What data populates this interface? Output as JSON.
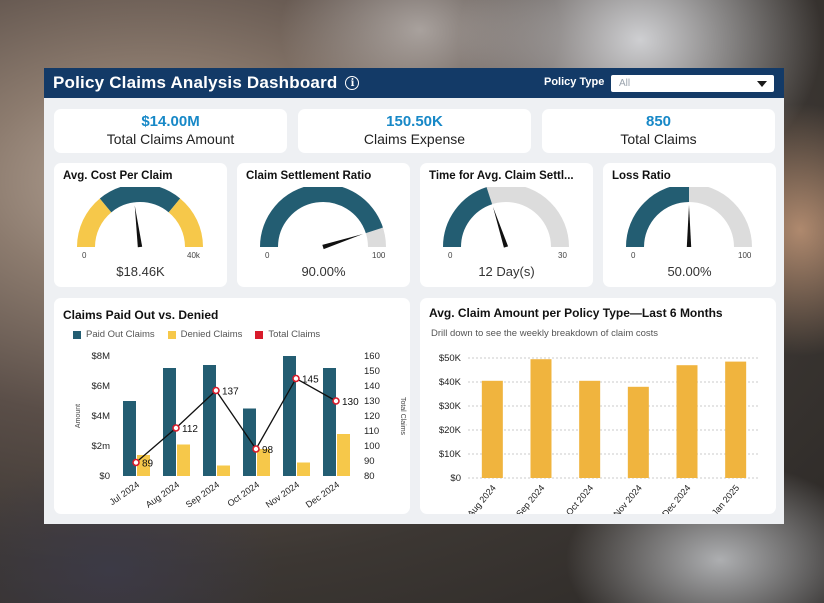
{
  "header": {
    "title": "Policy Claims Analysis Dashboard",
    "info_icon": "info-circle-icon",
    "filter_label": "Policy Type",
    "filter_value": "All"
  },
  "kpis": [
    {
      "value": "$14.00M",
      "label": "Total Claims Amount"
    },
    {
      "value": "150.50K",
      "label": "Claims Expense"
    },
    {
      "value": "850",
      "label": "Total Claims"
    }
  ],
  "gauges": [
    {
      "title": "Avg. Cost Per Claim",
      "min": "0",
      "max": "40k",
      "value_label": "$18.46K",
      "fraction": 0.46,
      "style": "segmented"
    },
    {
      "title": "Claim Settlement Ratio",
      "min": "0",
      "max": "100",
      "value_label": "90.00%",
      "fraction": 0.9,
      "style": "fill"
    },
    {
      "title": "Time for Avg. Claim Settl...",
      "min": "0",
      "max": "30",
      "value_label": "12 Day(s)",
      "fraction": 0.4,
      "style": "fill"
    },
    {
      "title": "Loss Ratio",
      "min": "0",
      "max": "100",
      "value_label": "50.00%",
      "fraction": 0.5,
      "style": "fill"
    }
  ],
  "colors": {
    "navy": "#133a67",
    "teal": "#235d72",
    "gold": "#f0b43e",
    "gauge_yellow": "#f6c84a",
    "gauge_grey": "#dcdcdc",
    "accent": "#1788c7",
    "red": "#d81b2b"
  },
  "chart_data": [
    {
      "type": "bar",
      "title": "Claims Paid Out vs. Denied",
      "categories": [
        "Jul 2024",
        "Aug 2024",
        "Sep 2024",
        "Oct 2024",
        "Nov 2024",
        "Dec 2024"
      ],
      "series": [
        {
          "name": "Paid Out Claims",
          "values": [
            5.0,
            7.2,
            7.4,
            4.5,
            8.0,
            7.2
          ],
          "axis": "left"
        },
        {
          "name": "Denied Claims",
          "values": [
            1.4,
            2.1,
            0.7,
            1.8,
            0.9,
            2.8
          ],
          "axis": "left"
        },
        {
          "name": "Total Claims",
          "type": "line",
          "values": [
            89,
            112,
            137,
            98,
            145,
            130
          ],
          "axis": "right"
        }
      ],
      "ylabel": "Amount",
      "y2label": "Total Claims",
      "ylim": [
        0,
        8
      ],
      "y2lim": [
        80,
        160
      ],
      "yticks": [
        "$0",
        "$2m",
        "$4M",
        "$6M",
        "$8M"
      ],
      "y2ticks": [
        "80",
        "90",
        "100",
        "110",
        "120",
        "130",
        "140",
        "150",
        "160"
      ]
    },
    {
      "type": "bar",
      "title": "Avg. Claim Amount per Policy Type—Last 6 Months",
      "subtitle": "Drill down to see the weekly breakdown of claim costs",
      "categories": [
        "Aug 2024",
        "Sep 2024",
        "Oct 2024",
        "Nov 2024",
        "Dec 2024",
        "Jan 2025"
      ],
      "values": [
        40500,
        49500,
        40500,
        38000,
        47000,
        48500
      ],
      "ylim": [
        0,
        50000
      ],
      "yticks": [
        "$0",
        "$10K",
        "$20K",
        "$30K",
        "$40K",
        "$50K"
      ]
    }
  ]
}
